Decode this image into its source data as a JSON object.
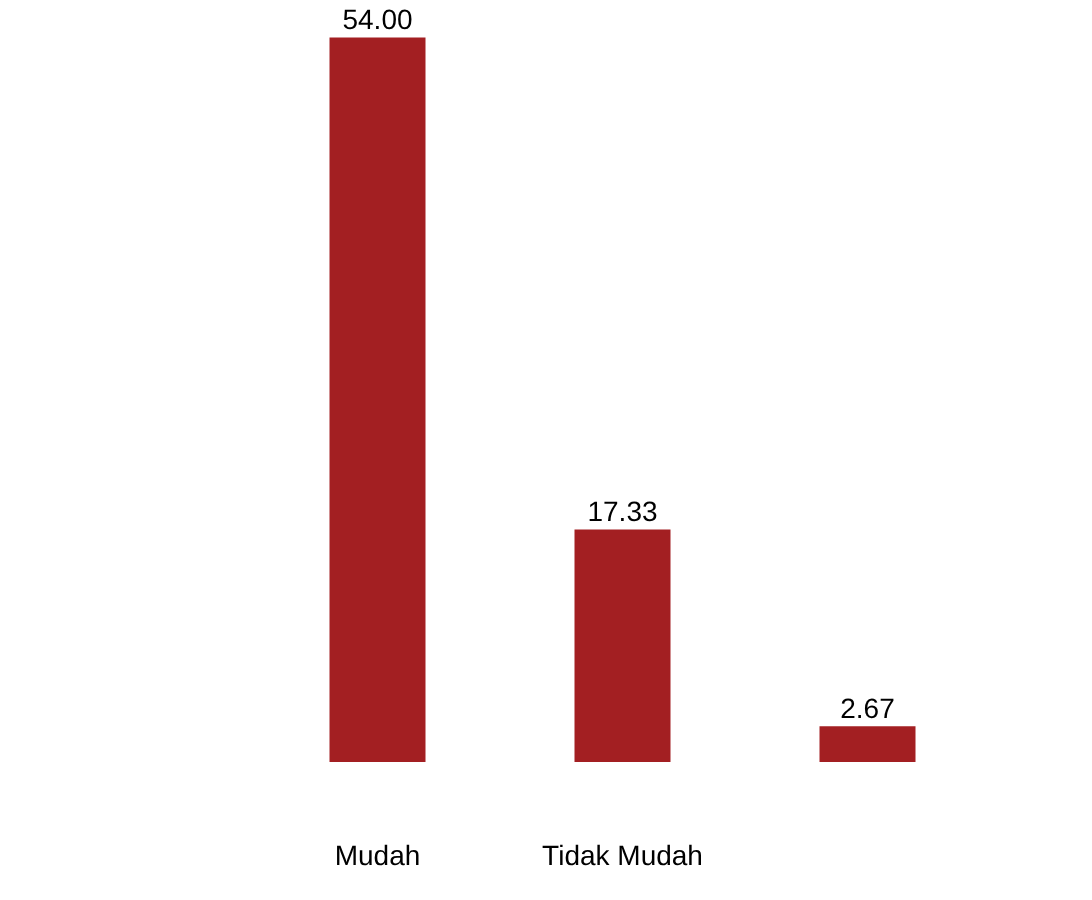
{
  "chart_data": {
    "type": "bar",
    "categories": [
      null,
      "Mudah",
      "Tidak Mudah",
      null
    ],
    "values": [
      null,
      54.0,
      17.33,
      2.67
    ],
    "value_labels": [
      null,
      "54.00",
      "17.33",
      "2.67"
    ],
    "color": "#a31f22",
    "tick_labels": "x",
    "grid": false
  }
}
